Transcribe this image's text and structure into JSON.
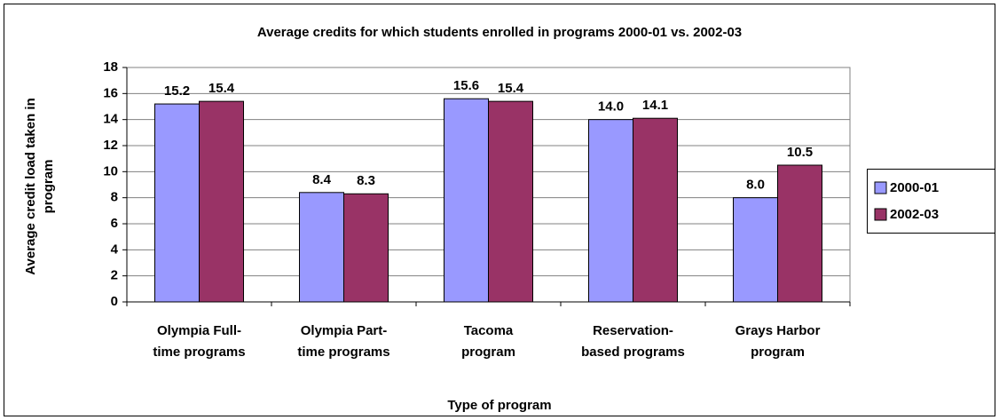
{
  "chart_data": {
    "type": "bar",
    "title": "Average credits for which students enrolled in programs 2000-01 vs. 2002-03",
    "x_label": "Type of program",
    "y_label": [
      "Average credit load taken in",
      "program"
    ],
    "categories": [
      [
        "Olympia Full-",
        "time programs"
      ],
      [
        "Olympia Part-",
        "time programs"
      ],
      [
        "Tacoma",
        "program"
      ],
      [
        "Reservation-",
        "based programs"
      ],
      [
        "Grays Harbor",
        "program"
      ]
    ],
    "series": [
      {
        "name": "2000-01",
        "color": "#9999ff",
        "values": [
          15.2,
          8.4,
          15.6,
          14,
          8
        ],
        "value_labels": [
          "15.2",
          "8.4",
          "15.6",
          "14.0",
          "8.0"
        ]
      },
      {
        "name": "2002-03",
        "color": "#993366",
        "values": [
          15.4,
          8.3,
          15.4,
          14.1,
          10.5
        ],
        "value_labels": [
          "15.4",
          "8.3",
          "15.4",
          "14.1",
          "10.5"
        ]
      }
    ],
    "ylim": [
      0,
      18
    ],
    "yticks": [
      0,
      2,
      4,
      6,
      8,
      10,
      12,
      14,
      16,
      18
    ],
    "grid": true,
    "legend": "right"
  }
}
